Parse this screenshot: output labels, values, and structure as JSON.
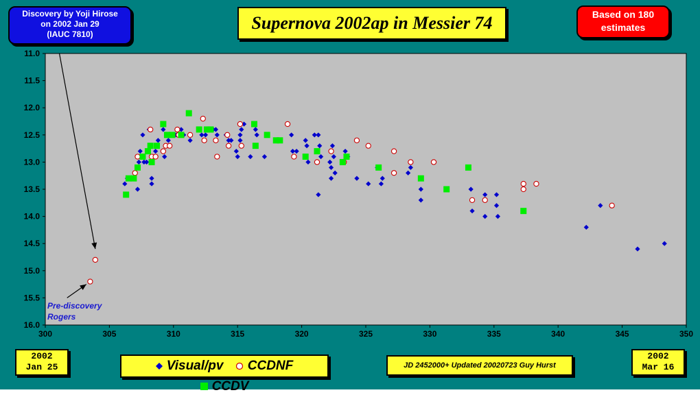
{
  "header": {
    "discovery": [
      "Discovery by Yoji Hirose",
      "on 2002 Jan 29",
      "(IAUC 7810)"
    ],
    "title": "Supernova 2002ap in Messier 74",
    "estimates": [
      "Based on 180",
      "estimates"
    ]
  },
  "footer": {
    "start_date": [
      "2002",
      "Jan 25"
    ],
    "end_date": [
      "2002",
      "Mar 16"
    ],
    "credit": "JD 2452000+ Updated 20020723 Guy Hurst"
  },
  "annotation": [
    "Pre-discovery",
    "Rogers"
  ],
  "colors": {
    "frame": "#008080",
    "plot_bg": "#c0c0c0",
    "visual": "#0000cc",
    "ccdnf_fill": "#ffffff",
    "ccdnf_edge": "#cc0000",
    "ccdv": "#00ee00",
    "label_box": "#ffff33"
  },
  "chart_data": {
    "type": "scatter",
    "title": "Supernova 2002ap in Messier 74",
    "xlabel": "",
    "ylabel": "",
    "xlim": [
      300,
      350
    ],
    "ylim": [
      16.0,
      11.0
    ],
    "y_inverted": true,
    "grid": false,
    "legend_position": "bottom",
    "x_ticks": [
      "300",
      "305",
      "310",
      "315",
      "320",
      "325",
      "330",
      "335",
      "340",
      "345",
      "350"
    ],
    "y_ticks": [
      "11.0",
      "11.5",
      "12.0",
      "12.5",
      "13.0",
      "13.5",
      "14.0",
      "14.5",
      "15.0",
      "15.5",
      "16.0"
    ],
    "series": [
      {
        "name": "Visual/pv",
        "marker": "diamond",
        "points": [
          [
            306.2,
            13.4
          ],
          [
            306.4,
            13.3
          ],
          [
            307.0,
            13.2
          ],
          [
            307.2,
            13.5
          ],
          [
            307.3,
            13.0
          ],
          [
            307.4,
            12.8
          ],
          [
            307.5,
            12.9
          ],
          [
            307.6,
            12.5
          ],
          [
            307.7,
            13.0
          ],
          [
            307.9,
            13.0
          ],
          [
            308.1,
            12.4
          ],
          [
            308.3,
            13.4
          ],
          [
            308.3,
            13.3
          ],
          [
            308.4,
            12.9
          ],
          [
            308.6,
            12.8
          ],
          [
            308.8,
            12.6
          ],
          [
            309.2,
            12.4
          ],
          [
            309.3,
            12.9
          ],
          [
            309.6,
            12.6
          ],
          [
            310.2,
            12.5
          ],
          [
            310.6,
            12.4
          ],
          [
            310.8,
            12.5
          ],
          [
            311.3,
            12.6
          ],
          [
            312.2,
            12.5
          ],
          [
            312.5,
            12.5
          ],
          [
            313.1,
            12.4
          ],
          [
            313.3,
            12.4
          ],
          [
            313.4,
            12.5
          ],
          [
            314.1,
            12.5
          ],
          [
            314.3,
            12.6
          ],
          [
            314.5,
            12.6
          ],
          [
            314.9,
            12.8
          ],
          [
            315.0,
            12.9
          ],
          [
            315.2,
            12.6
          ],
          [
            315.2,
            12.5
          ],
          [
            315.3,
            12.4
          ],
          [
            315.5,
            12.3
          ],
          [
            316.0,
            12.9
          ],
          [
            316.4,
            12.4
          ],
          [
            316.5,
            12.5
          ],
          [
            317.1,
            12.9
          ],
          [
            319.2,
            12.5
          ],
          [
            319.3,
            12.8
          ],
          [
            319.6,
            12.8
          ],
          [
            320.3,
            12.6
          ],
          [
            320.4,
            12.7
          ],
          [
            320.5,
            13.0
          ],
          [
            321.0,
            12.5
          ],
          [
            321.3,
            12.5
          ],
          [
            321.4,
            12.7
          ],
          [
            321.3,
            13.6
          ],
          [
            321.5,
            12.9
          ],
          [
            322.2,
            13.0
          ],
          [
            322.3,
            13.1
          ],
          [
            322.4,
            12.7
          ],
          [
            322.5,
            12.9
          ],
          [
            322.3,
            13.3
          ],
          [
            322.6,
            13.2
          ],
          [
            323.4,
            12.8
          ],
          [
            323.6,
            12.9
          ],
          [
            324.3,
            13.3
          ],
          [
            325.2,
            13.4
          ],
          [
            325.9,
            13.1
          ],
          [
            326.3,
            13.3
          ],
          [
            326.2,
            13.4
          ],
          [
            328.3,
            13.2
          ],
          [
            328.5,
            13.1
          ],
          [
            329.3,
            13.5
          ],
          [
            329.3,
            13.7
          ],
          [
            333.2,
            13.5
          ],
          [
            333.3,
            13.9
          ],
          [
            334.3,
            13.6
          ],
          [
            334.3,
            14.0
          ],
          [
            335.2,
            13.6
          ],
          [
            335.2,
            13.8
          ],
          [
            335.3,
            14.0
          ],
          [
            342.2,
            14.2
          ],
          [
            343.3,
            13.8
          ],
          [
            346.2,
            14.6
          ],
          [
            348.3,
            14.5
          ]
        ]
      },
      {
        "name": "CCDNF",
        "marker": "circle",
        "points": [
          [
            303.5,
            15.2
          ],
          [
            303.9,
            14.8
          ],
          [
            307.0,
            13.2
          ],
          [
            307.2,
            12.9
          ],
          [
            308.2,
            12.4
          ],
          [
            308.3,
            12.9
          ],
          [
            308.6,
            12.9
          ],
          [
            309.2,
            12.8
          ],
          [
            309.4,
            12.7
          ],
          [
            309.7,
            12.7
          ],
          [
            310.3,
            12.4
          ],
          [
            310.4,
            12.5
          ],
          [
            311.3,
            12.5
          ],
          [
            312.3,
            12.2
          ],
          [
            312.4,
            12.6
          ],
          [
            313.3,
            12.6
          ],
          [
            313.4,
            12.9
          ],
          [
            314.2,
            12.5
          ],
          [
            314.3,
            12.7
          ],
          [
            315.2,
            12.3
          ],
          [
            315.3,
            12.7
          ],
          [
            318.9,
            12.3
          ],
          [
            319.4,
            12.9
          ],
          [
            321.2,
            13.0
          ],
          [
            322.3,
            12.8
          ],
          [
            323.3,
            13.0
          ],
          [
            324.3,
            12.6
          ],
          [
            325.2,
            12.7
          ],
          [
            327.2,
            12.8
          ],
          [
            327.2,
            13.2
          ],
          [
            328.5,
            13.0
          ],
          [
            330.3,
            13.0
          ],
          [
            333.3,
            13.7
          ],
          [
            334.3,
            13.7
          ],
          [
            337.3,
            13.4
          ],
          [
            337.3,
            13.5
          ],
          [
            338.3,
            13.4
          ],
          [
            344.2,
            13.8
          ]
        ]
      },
      {
        "name": "CCDV",
        "marker": "square",
        "points": [
          [
            306.3,
            13.6
          ],
          [
            306.5,
            13.3
          ],
          [
            306.9,
            13.3
          ],
          [
            307.2,
            13.1
          ],
          [
            307.6,
            12.9
          ],
          [
            308.0,
            12.8
          ],
          [
            308.2,
            12.7
          ],
          [
            308.3,
            13.0
          ],
          [
            308.7,
            12.7
          ],
          [
            309.2,
            12.3
          ],
          [
            309.5,
            12.5
          ],
          [
            309.9,
            12.5
          ],
          [
            310.6,
            12.5
          ],
          [
            311.2,
            12.1
          ],
          [
            312.0,
            12.4
          ],
          [
            312.6,
            12.4
          ],
          [
            312.9,
            12.4
          ],
          [
            316.3,
            12.3
          ],
          [
            316.4,
            12.7
          ],
          [
            317.3,
            12.5
          ],
          [
            318.0,
            12.6
          ],
          [
            318.3,
            12.6
          ],
          [
            320.3,
            12.9
          ],
          [
            321.2,
            12.8
          ],
          [
            323.2,
            13.0
          ],
          [
            323.5,
            12.9
          ],
          [
            326.0,
            13.1
          ],
          [
            329.3,
            13.3
          ],
          [
            331.3,
            13.5
          ],
          [
            333.0,
            13.1
          ],
          [
            337.3,
            13.9
          ]
        ]
      }
    ],
    "arrows": [
      {
        "from": [
          301.1,
          11.0
        ],
        "to": [
          303.9,
          14.6
        ]
      },
      {
        "from": [
          301.7,
          15.5
        ],
        "to": [
          303.2,
          15.25
        ]
      }
    ]
  }
}
